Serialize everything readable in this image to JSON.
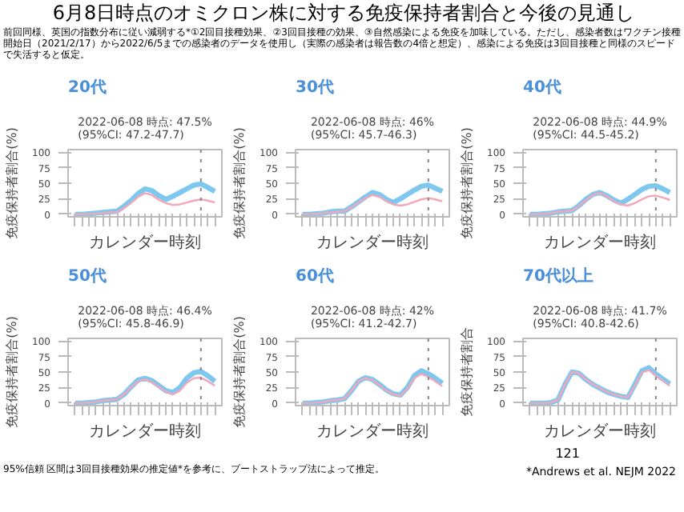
{
  "chart_data": [
    {
      "type": "line",
      "title": "20代",
      "subtitle": "2022-06-08 時点: 47.5% (95%CI: 47.2-47.7)",
      "xlabel": "カレンダー時刻",
      "ylabel": "免疫保持者割合(%)",
      "annotations": [
        "6月8日時点のオミクロン株に対する免疫保持者割合と今後の見通し",
        "前回同様、英国の指数分布に従い減弱する*①2回目接種効果、②3回目接種の効果、③自然感染による免疫を加味している。ただし、感染者数はワクチン接種開始日（2021/2/17）から2022/6/5までの感染者のデータを使用し（実際の感染者は報告数の4倍と想定）、感染による免疫は3回目接種と同様のスピードで失活すると仮定。"
      ],
      "categories": [
        null,
        null,
        null,
        null,
        null,
        null,
        null,
        null,
        null,
        null,
        null,
        null,
        null,
        null,
        null,
        null,
        null,
        null,
        null,
        null,
        null
      ],
      "ylim": [
        -4,
        104
      ],
      "yticks": [
        0,
        25,
        50,
        75,
        100
      ],
      "tick_labels": "y",
      "grid": false,
      "series": [
        {
          "color": "#7ec8f0",
          "values": [
            0,
            0,
            1,
            2,
            3,
            4,
            5,
            13,
            22,
            33,
            41,
            38,
            30,
            24,
            29,
            35,
            41,
            47,
            49,
            43,
            37
          ]
        },
        {
          "color": "#f4a6b8",
          "values": [
            0,
            0,
            1,
            1,
            2,
            3,
            3,
            10,
            18,
            28,
            34,
            31,
            23,
            18,
            15,
            16,
            19,
            22,
            24,
            22,
            19
          ]
        }
      ]
    },
    {
      "type": "line",
      "title": "30代",
      "subtitle": "2022-06-08 時点: 46% (95%CI: 45.7-46.3)",
      "xlabel": "カレンダー時刻",
      "ylabel": "免疫保持者割合(%)",
      "categories": [
        null,
        null,
        null,
        null,
        null,
        null,
        null,
        null,
        null,
        null,
        null,
        null,
        null,
        null,
        null,
        null,
        null,
        null,
        null,
        null,
        null
      ],
      "ylim": [
        -4,
        104
      ],
      "yticks": [
        0,
        25,
        50,
        75,
        100
      ],
      "tick_labels": "y",
      "grid": false,
      "series": [
        {
          "color": "#7ec8f0",
          "values": [
            0,
            0,
            1,
            2,
            4,
            5,
            5,
            12,
            20,
            28,
            35,
            32,
            24,
            19,
            25,
            32,
            39,
            45,
            47,
            42,
            37
          ]
        },
        {
          "color": "#f4a6b8",
          "values": [
            0,
            0,
            1,
            2,
            3,
            4,
            5,
            11,
            19,
            26,
            31,
            28,
            21,
            16,
            14,
            16,
            20,
            24,
            26,
            24,
            21
          ]
        }
      ]
    },
    {
      "type": "line",
      "title": "40代",
      "subtitle": "2022-06-08 時点: 44.9% (95%CI: 44.5-45.2)",
      "xlabel": "カレンダー時刻",
      "ylabel": "免疫保持者割合(%)",
      "categories": [
        null,
        null,
        null,
        null,
        null,
        null,
        null,
        null,
        null,
        null,
        null,
        null,
        null,
        null,
        null,
        null,
        null,
        null,
        null,
        null,
        null
      ],
      "ylim": [
        -4,
        104
      ],
      "yticks": [
        0,
        25,
        50,
        75,
        100
      ],
      "tick_labels": "y",
      "grid": false,
      "series": [
        {
          "color": "#7ec8f0",
          "values": [
            0,
            0,
            1,
            2,
            4,
            5,
            6,
            14,
            24,
            32,
            35,
            30,
            23,
            18,
            24,
            32,
            40,
            45,
            46,
            41,
            35
          ]
        },
        {
          "color": "#f4a6b8",
          "values": [
            0,
            0,
            1,
            2,
            4,
            5,
            6,
            13,
            23,
            31,
            34,
            29,
            21,
            16,
            14,
            18,
            24,
            29,
            30,
            27,
            23
          ]
        }
      ]
    },
    {
      "type": "line",
      "title": "50代",
      "subtitle": "2022-06-08 時点: 46.4% (95%CI: 45.8-46.9)",
      "xlabel": "カレンダー時刻",
      "ylabel": "免疫保持者割合(%)",
      "categories": [
        null,
        null,
        null,
        null,
        null,
        null,
        null,
        null,
        null,
        null,
        null,
        null,
        null,
        null,
        null,
        null,
        null,
        null,
        null,
        null,
        null
      ],
      "ylim": [
        -4,
        104
      ],
      "yticks": [
        0,
        25,
        50,
        75,
        100
      ],
      "tick_labels": "y",
      "grid": false,
      "series": [
        {
          "color": "#7ec8f0",
          "values": [
            0,
            0,
            1,
            2,
            4,
            5,
            6,
            14,
            26,
            37,
            40,
            36,
            28,
            20,
            17,
            25,
            40,
            49,
            51,
            44,
            35
          ]
        },
        {
          "color": "#f4a6b8",
          "values": [
            0,
            0,
            1,
            2,
            4,
            5,
            6,
            14,
            25,
            35,
            38,
            34,
            26,
            18,
            14,
            20,
            33,
            40,
            41,
            35,
            28
          ]
        }
      ]
    },
    {
      "type": "line",
      "title": "60代",
      "subtitle": "2022-06-08 時点: 42% (95%CI: 41.2-42.7)",
      "xlabel": "カレンダー時刻",
      "ylabel": "免疫保持者割合(%)",
      "categories": [
        null,
        null,
        null,
        null,
        null,
        null,
        null,
        null,
        null,
        null,
        null,
        null,
        null,
        null,
        null,
        null,
        null,
        null,
        null,
        null,
        null
      ],
      "ylim": [
        -4,
        104
      ],
      "yticks": [
        0,
        25,
        50,
        75,
        100
      ],
      "tick_labels": "y",
      "grid": false,
      "series": [
        {
          "color": "#7ec8f0",
          "values": [
            0,
            0,
            1,
            2,
            4,
            5,
            7,
            20,
            35,
            41,
            38,
            30,
            21,
            15,
            13,
            25,
            44,
            52,
            47,
            40,
            32
          ]
        },
        {
          "color": "#f4a6b8",
          "values": [
            0,
            0,
            1,
            2,
            4,
            5,
            7,
            20,
            35,
            40,
            37,
            29,
            20,
            14,
            12,
            23,
            40,
            47,
            42,
            35,
            27
          ]
        }
      ]
    },
    {
      "type": "line",
      "title": "70代以上",
      "subtitle": "2022-06-08 時点: 41.7% (95%CI: 40.8-42.6)",
      "xlabel": "カレンダー時刻",
      "ylabel": "免疫保持者割合",
      "annotations": [
        "121",
        "95%信頼 区間は3回目接種効果の推定値*を参考に、ブートストラップ法によって推定。",
        "*Andrews et al. NEJM 2022"
      ],
      "categories": [
        null,
        null,
        null,
        null,
        null,
        null,
        null,
        null,
        null,
        null,
        null,
        null,
        null,
        null,
        null,
        null,
        null,
        null,
        null,
        null,
        null
      ],
      "ylim": [
        -4,
        104
      ],
      "yticks": [
        0,
        25,
        50,
        75,
        100
      ],
      "tick_labels": "y",
      "grid": false,
      "series": [
        {
          "color": "#7ec8f0",
          "values": [
            0,
            0,
            0,
            1,
            5,
            30,
            50,
            48,
            38,
            30,
            24,
            18,
            14,
            11,
            9,
            30,
            52,
            57,
            47,
            39,
            31
          ]
        },
        {
          "color": "#f4a6b8",
          "values": [
            0,
            0,
            0,
            1,
            5,
            30,
            50,
            48,
            38,
            30,
            24,
            18,
            14,
            11,
            9,
            28,
            49,
            53,
            44,
            36,
            28
          ]
        }
      ]
    }
  ]
}
